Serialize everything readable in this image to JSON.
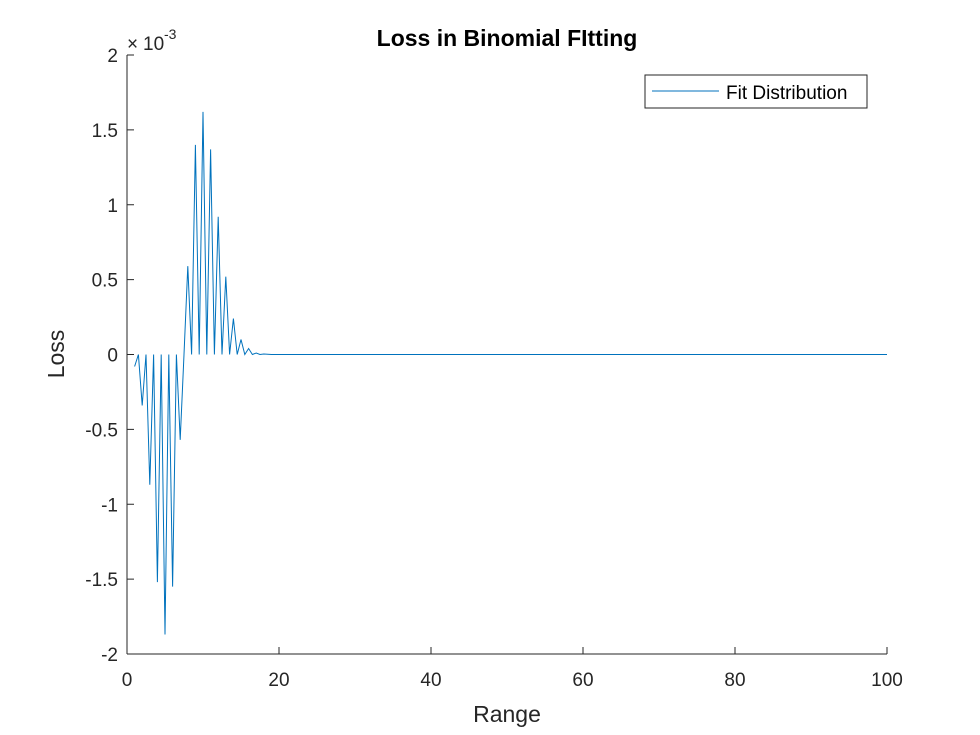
{
  "chart_data": {
    "type": "line",
    "title": "Loss in Binomial FItting",
    "xlabel": "Range",
    "ylabel": "Loss",
    "xlim": [
      0,
      100
    ],
    "ylim": [
      -2,
      2
    ],
    "y_exponent_label": "10",
    "y_exponent_power": "-3",
    "y_exponent_prefix": "×",
    "x_ticks": [
      0,
      20,
      40,
      60,
      80,
      100
    ],
    "x_tick_labels": [
      "0",
      "20",
      "40",
      "60",
      "80",
      "100"
    ],
    "y_ticks": [
      -2,
      -1.5,
      -1,
      -0.5,
      0,
      0.5,
      1,
      1.5,
      2
    ],
    "y_tick_labels": [
      "-2",
      "-1.5",
      "-1",
      "-0.5",
      "0",
      "0.5",
      "1",
      "1.5",
      "2"
    ],
    "grid": false,
    "legend": {
      "placement": "top-right"
    },
    "series": [
      {
        "name": "Fit Distribution",
        "color": "#0072BD",
        "x": [
          1,
          1.5,
          2,
          2.5,
          3,
          3.5,
          4,
          4.5,
          5,
          5.5,
          6,
          6.5,
          7,
          7.5,
          8,
          8.5,
          9,
          9.5,
          10,
          10.5,
          11,
          11.5,
          12,
          12.5,
          13,
          13.5,
          14,
          14.5,
          15,
          15.5,
          16,
          16.5,
          17,
          17.5,
          18,
          19,
          20,
          100
        ],
        "y": [
          -0.08,
          0,
          -0.34,
          0,
          -0.87,
          0,
          -1.52,
          0,
          -1.87,
          0,
          -1.55,
          0,
          -0.57,
          0,
          0.59,
          0,
          1.4,
          0,
          1.62,
          0,
          1.37,
          0,
          0.92,
          0,
          0.52,
          0,
          0.24,
          0,
          0.1,
          0,
          0.04,
          0,
          0.01,
          0,
          0.003,
          0,
          0,
          0
        ]
      }
    ]
  }
}
